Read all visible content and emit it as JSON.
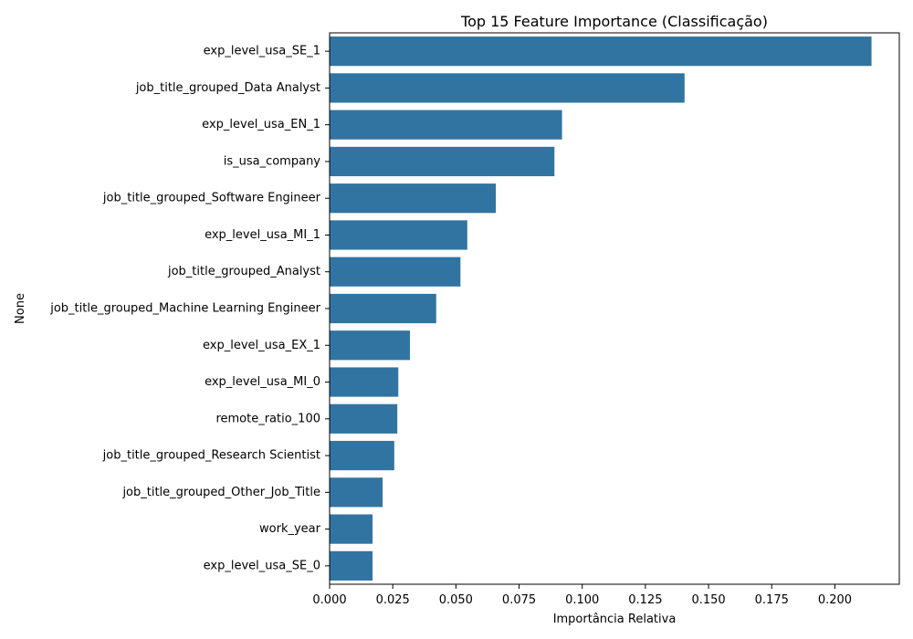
{
  "chart_data": {
    "type": "bar",
    "orientation": "horizontal",
    "title": "Top 15 Feature Importance (Classificação)",
    "xlabel": "Importância Relativa",
    "ylabel": "None",
    "categories": [
      "exp_level_usa_SE_1",
      "job_title_grouped_Data Analyst",
      "exp_level_usa_EN_1",
      "is_usa_company",
      "job_title_grouped_Software Engineer",
      "exp_level_usa_MI_1",
      "job_title_grouped_Analyst",
      "job_title_grouped_Machine Learning Engineer",
      "exp_level_usa_EX_1",
      "exp_level_usa_MI_0",
      "remote_ratio_100",
      "job_title_grouped_Research Scientist",
      "job_title_grouped_Other_Job_Title",
      "work_year",
      "exp_level_usa_SE_0"
    ],
    "values": [
      0.2145,
      0.1405,
      0.092,
      0.089,
      0.0658,
      0.0545,
      0.0518,
      0.0422,
      0.0318,
      0.0272,
      0.0268,
      0.0256,
      0.021,
      0.017,
      0.017
    ],
    "xlim": [
      0,
      0.2255
    ],
    "xticks": [
      "0.000",
      "0.025",
      "0.050",
      "0.075",
      "0.100",
      "0.125",
      "0.150",
      "0.175",
      "0.200"
    ],
    "bar_color": "#3274a1",
    "grid": false,
    "legend": "none"
  }
}
